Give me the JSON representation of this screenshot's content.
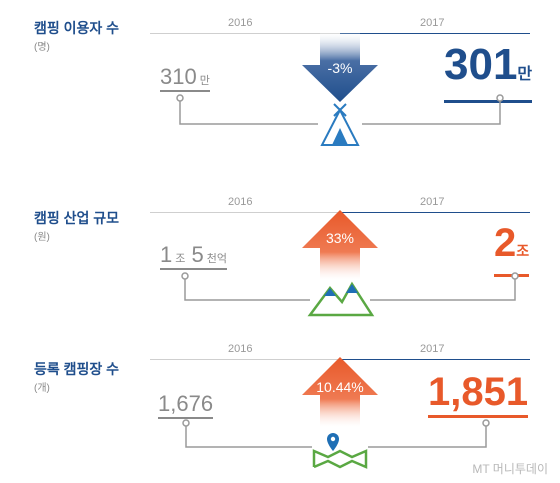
{
  "chart_data": [
    {
      "type": "table",
      "title": "캠핑 이용자 수",
      "unit": "(명)",
      "years": [
        "2016",
        "2017"
      ],
      "values": [
        310,
        301
      ],
      "value_labels": [
        "310",
        "301"
      ],
      "value_units": [
        "만",
        "만"
      ],
      "change_label": "-3%",
      "direction": "down",
      "icon": "tent-icon"
    },
    {
      "type": "table",
      "title": "캠핑 산업 규모",
      "unit": "(원)",
      "years": [
        "2016",
        "2017"
      ],
      "left_parts": [
        "1",
        "조",
        "5",
        "천억"
      ],
      "right_parts": [
        "2",
        "조"
      ],
      "change_label": "33%",
      "direction": "up",
      "icon": "mountain-icon"
    },
    {
      "type": "table",
      "title": "등록 캠핑장 수",
      "unit": "(개)",
      "years": [
        "2016",
        "2017"
      ],
      "values": [
        1676,
        1851
      ],
      "value_labels": [
        "1,676",
        "1,851"
      ],
      "change_label": "10.44%",
      "direction": "up",
      "icon": "map-pin-icon"
    }
  ],
  "colors": {
    "title": "#1f4e8c",
    "blue": "#1f4e8c",
    "orange": "#e8592a",
    "gray": "#8a8a8a",
    "green": "#5aa843"
  },
  "watermark": "MT 머니투데이"
}
